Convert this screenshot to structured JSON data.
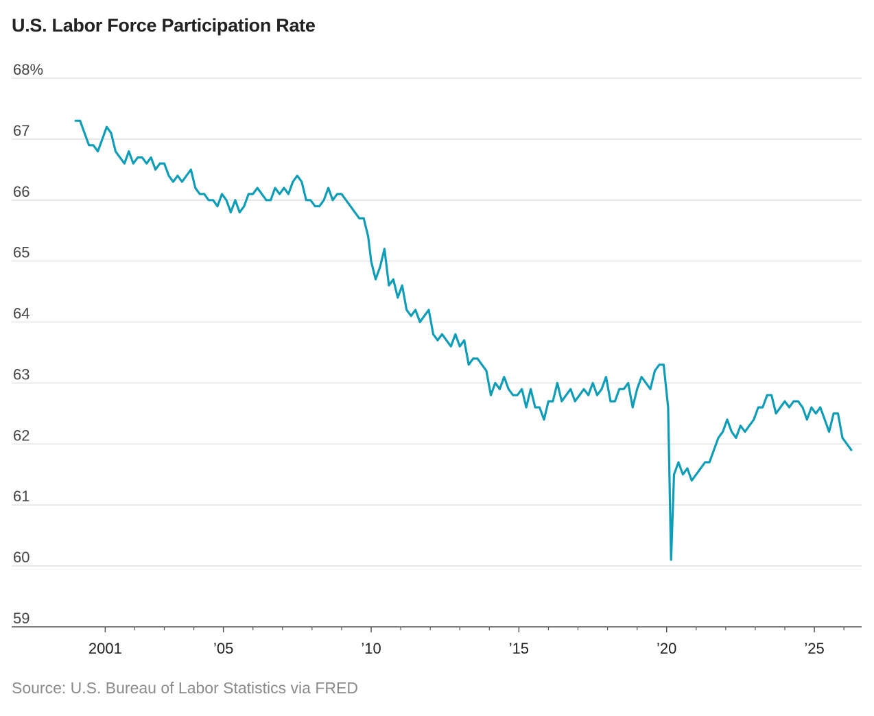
{
  "chart_data": {
    "type": "line",
    "title": "U.S. Labor Force Participation Rate",
    "source": "Source: U.S. Bureau of Labor Statistics via FRED",
    "xlabel": "",
    "ylabel": "",
    "ylim": [
      59,
      68
    ],
    "xlim": [
      1998.6,
      2026.6
    ],
    "yticks": [
      {
        "value": 68,
        "label": "68%"
      },
      {
        "value": 67,
        "label": "67"
      },
      {
        "value": 66,
        "label": "66"
      },
      {
        "value": 65,
        "label": "65"
      },
      {
        "value": 64,
        "label": "64"
      },
      {
        "value": 63,
        "label": "63"
      },
      {
        "value": 62,
        "label": "62"
      },
      {
        "value": 61,
        "label": "61"
      },
      {
        "value": 60,
        "label": "60"
      },
      {
        "value": 59,
        "label": "59"
      }
    ],
    "xticks_major": [
      {
        "value": 2001,
        "label": "2001"
      },
      {
        "value": 2005,
        "label": "’05"
      },
      {
        "value": 2010,
        "label": "’10"
      },
      {
        "value": 2015,
        "label": "’15"
      },
      {
        "value": 2020,
        "label": "’20"
      },
      {
        "value": 2025,
        "label": "’25"
      }
    ],
    "xticks_minor": [
      2002,
      2003,
      2004,
      2006,
      2007,
      2008,
      2009,
      2011,
      2012,
      2013,
      2014,
      2016,
      2017,
      2018,
      2019,
      2021,
      2022,
      2023,
      2024,
      2026
    ],
    "grid": true,
    "series": [
      {
        "name": "Labor force participation rate",
        "color": "#0e9db7",
        "x": [
          2000.0,
          2000.15,
          2000.3,
          2000.45,
          2000.6,
          2000.75,
          2000.9,
          2001.05,
          2001.2,
          2001.35,
          2001.5,
          2001.65,
          2001.8,
          2001.95,
          2002.1,
          2002.25,
          2002.4,
          2002.55,
          2002.7,
          2002.85,
          2003.0,
          2003.15,
          2003.3,
          2003.45,
          2003.6,
          2003.75,
          2003.9,
          2004.05,
          2004.2,
          2004.35,
          2004.5,
          2004.65,
          2004.8,
          2004.95,
          2005.1,
          2005.25,
          2005.4,
          2005.55,
          2005.7,
          2005.85,
          2006.0,
          2006.15,
          2006.3,
          2006.45,
          2006.6,
          2006.75,
          2006.9,
          2007.05,
          2007.2,
          2007.35,
          2007.5,
          2007.65,
          2007.8,
          2007.95,
          2008.1,
          2008.25,
          2008.4,
          2008.55,
          2008.7,
          2008.85,
          2009.0,
          2009.15,
          2009.3,
          2009.45,
          2009.6,
          2009.75,
          2009.9,
          2010.0,
          2010.15,
          2010.3,
          2010.45,
          2010.6,
          2010.75,
          2010.9,
          2011.05,
          2011.2,
          2011.35,
          2011.5,
          2011.65,
          2011.8,
          2011.95,
          2012.1,
          2012.25,
          2012.4,
          2012.55,
          2012.7,
          2012.85,
          2013.0,
          2013.15,
          2013.3,
          2013.45,
          2013.6,
          2013.75,
          2013.9,
          2014.05,
          2014.2,
          2014.35,
          2014.5,
          2014.65,
          2014.8,
          2014.95,
          2015.1,
          2015.25,
          2015.4,
          2015.55,
          2015.7,
          2015.85,
          2016.0,
          2016.15,
          2016.3,
          2016.45,
          2016.6,
          2016.75,
          2016.9,
          2017.05,
          2017.2,
          2017.35,
          2017.5,
          2017.65,
          2017.8,
          2017.95,
          2018.1,
          2018.25,
          2018.4,
          2018.55,
          2018.7,
          2018.85,
          2019.0,
          2019.15,
          2019.3,
          2019.45,
          2019.6,
          2019.75,
          2019.9,
          2020.05,
          2020.15,
          2020.25,
          2020.4,
          2020.55,
          2020.7,
          2020.85,
          2021.0,
          2021.15,
          2021.3,
          2021.45,
          2021.6,
          2021.75,
          2021.9,
          2022.05,
          2022.2,
          2022.35,
          2022.5,
          2022.65,
          2022.8,
          2022.95,
          2023.1,
          2023.25,
          2023.4,
          2023.55,
          2023.7,
          2023.85,
          2024.0,
          2024.15,
          2024.3,
          2024.45,
          2024.6,
          2024.75,
          2024.9,
          2025.05,
          2025.2,
          2025.35,
          2025.5,
          2025.65,
          2025.8,
          2025.95,
          2026.1,
          2026.25
        ],
        "y": [
          67.3,
          67.3,
          67.1,
          66.9,
          66.9,
          66.8,
          67.0,
          67.2,
          67.1,
          66.8,
          66.7,
          66.6,
          66.8,
          66.6,
          66.7,
          66.7,
          66.6,
          66.7,
          66.5,
          66.6,
          66.6,
          66.4,
          66.3,
          66.4,
          66.3,
          66.4,
          66.5,
          66.2,
          66.1,
          66.1,
          66.0,
          66.0,
          65.9,
          66.1,
          66.0,
          65.8,
          66.0,
          65.8,
          65.9,
          66.1,
          66.1,
          66.2,
          66.1,
          66.0,
          66.0,
          66.2,
          66.1,
          66.2,
          66.1,
          66.3,
          66.4,
          66.3,
          66.0,
          66.0,
          65.9,
          65.9,
          66.0,
          66.2,
          66.0,
          66.1,
          66.1,
          66.0,
          65.9,
          65.8,
          65.7,
          65.7,
          65.4,
          65.0,
          64.7,
          64.9,
          65.2,
          64.6,
          64.7,
          64.4,
          64.6,
          64.2,
          64.1,
          64.2,
          64.0,
          64.1,
          64.2,
          63.8,
          63.7,
          63.8,
          63.7,
          63.6,
          63.8,
          63.6,
          63.7,
          63.3,
          63.4,
          63.4,
          63.3,
          63.2,
          62.8,
          63.0,
          62.9,
          63.1,
          62.9,
          62.8,
          62.8,
          62.9,
          62.6,
          62.9,
          62.6,
          62.6,
          62.4,
          62.7,
          62.7,
          63.0,
          62.7,
          62.8,
          62.9,
          62.7,
          62.8,
          62.9,
          62.8,
          63.0,
          62.8,
          62.9,
          63.1,
          62.7,
          62.7,
          62.9,
          62.9,
          63.0,
          62.6,
          62.9,
          63.1,
          63.0,
          62.9,
          63.2,
          63.3,
          63.3,
          62.6,
          60.1,
          61.5,
          61.7,
          61.5,
          61.6,
          61.4,
          61.5,
          61.6,
          61.7,
          61.7,
          61.9,
          62.1,
          62.2,
          62.4,
          62.2,
          62.1,
          62.3,
          62.2,
          62.3,
          62.4,
          62.6,
          62.6,
          62.8,
          62.8,
          62.5,
          62.6,
          62.7,
          62.6,
          62.7,
          62.7,
          62.6,
          62.4,
          62.6,
          62.5,
          62.6,
          62.4,
          62.2,
          62.5,
          62.5,
          62.1,
          62.0,
          61.9
        ]
      }
    ]
  }
}
